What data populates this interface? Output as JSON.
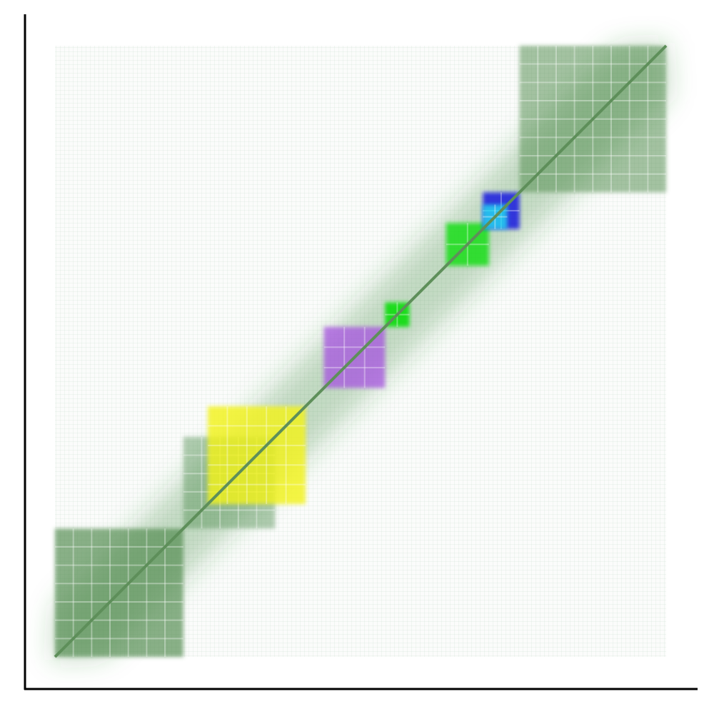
{
  "chart_data": {
    "type": "heatmap",
    "title": "",
    "xlabel": "",
    "ylabel": "",
    "base_color": "#2e7d32",
    "diagonal_color": "#5e8f5a",
    "bin_range": [
      0,
      100
    ],
    "tick_labels_shown": false,
    "grid": false,
    "legend": "none",
    "block_clusters": [
      {
        "name": "block-lower-left",
        "range": [
          0,
          21
        ],
        "color": "#4f8a4b",
        "intensity": 0.78
      },
      {
        "name": "block-lower-mid",
        "range": [
          21,
          36
        ],
        "color": "#5b9457",
        "intensity": 0.55
      },
      {
        "name": "block-yellow",
        "range": [
          25,
          41
        ],
        "color": "#f3f31a",
        "intensity": 0.95
      },
      {
        "name": "block-purple",
        "range": [
          44,
          54
        ],
        "color": "#a54de0",
        "intensity": 0.85
      },
      {
        "name": "block-green-center",
        "range": [
          54,
          58
        ],
        "color": "#00dd00",
        "intensity": 1.0
      },
      {
        "name": "block-green-upper",
        "range": [
          64,
          71
        ],
        "color": "#11dd11",
        "intensity": 0.95
      },
      {
        "name": "block-blue",
        "range": [
          70,
          76
        ],
        "color": "#1010e0",
        "intensity": 0.95
      },
      {
        "name": "block-cyan",
        "range": [
          70,
          74
        ],
        "color": "#22e4f2",
        "intensity": 0.9
      },
      {
        "name": "block-upper-right",
        "range": [
          76,
          100
        ],
        "color": "#4f8a4b",
        "intensity": 0.6
      }
    ]
  }
}
